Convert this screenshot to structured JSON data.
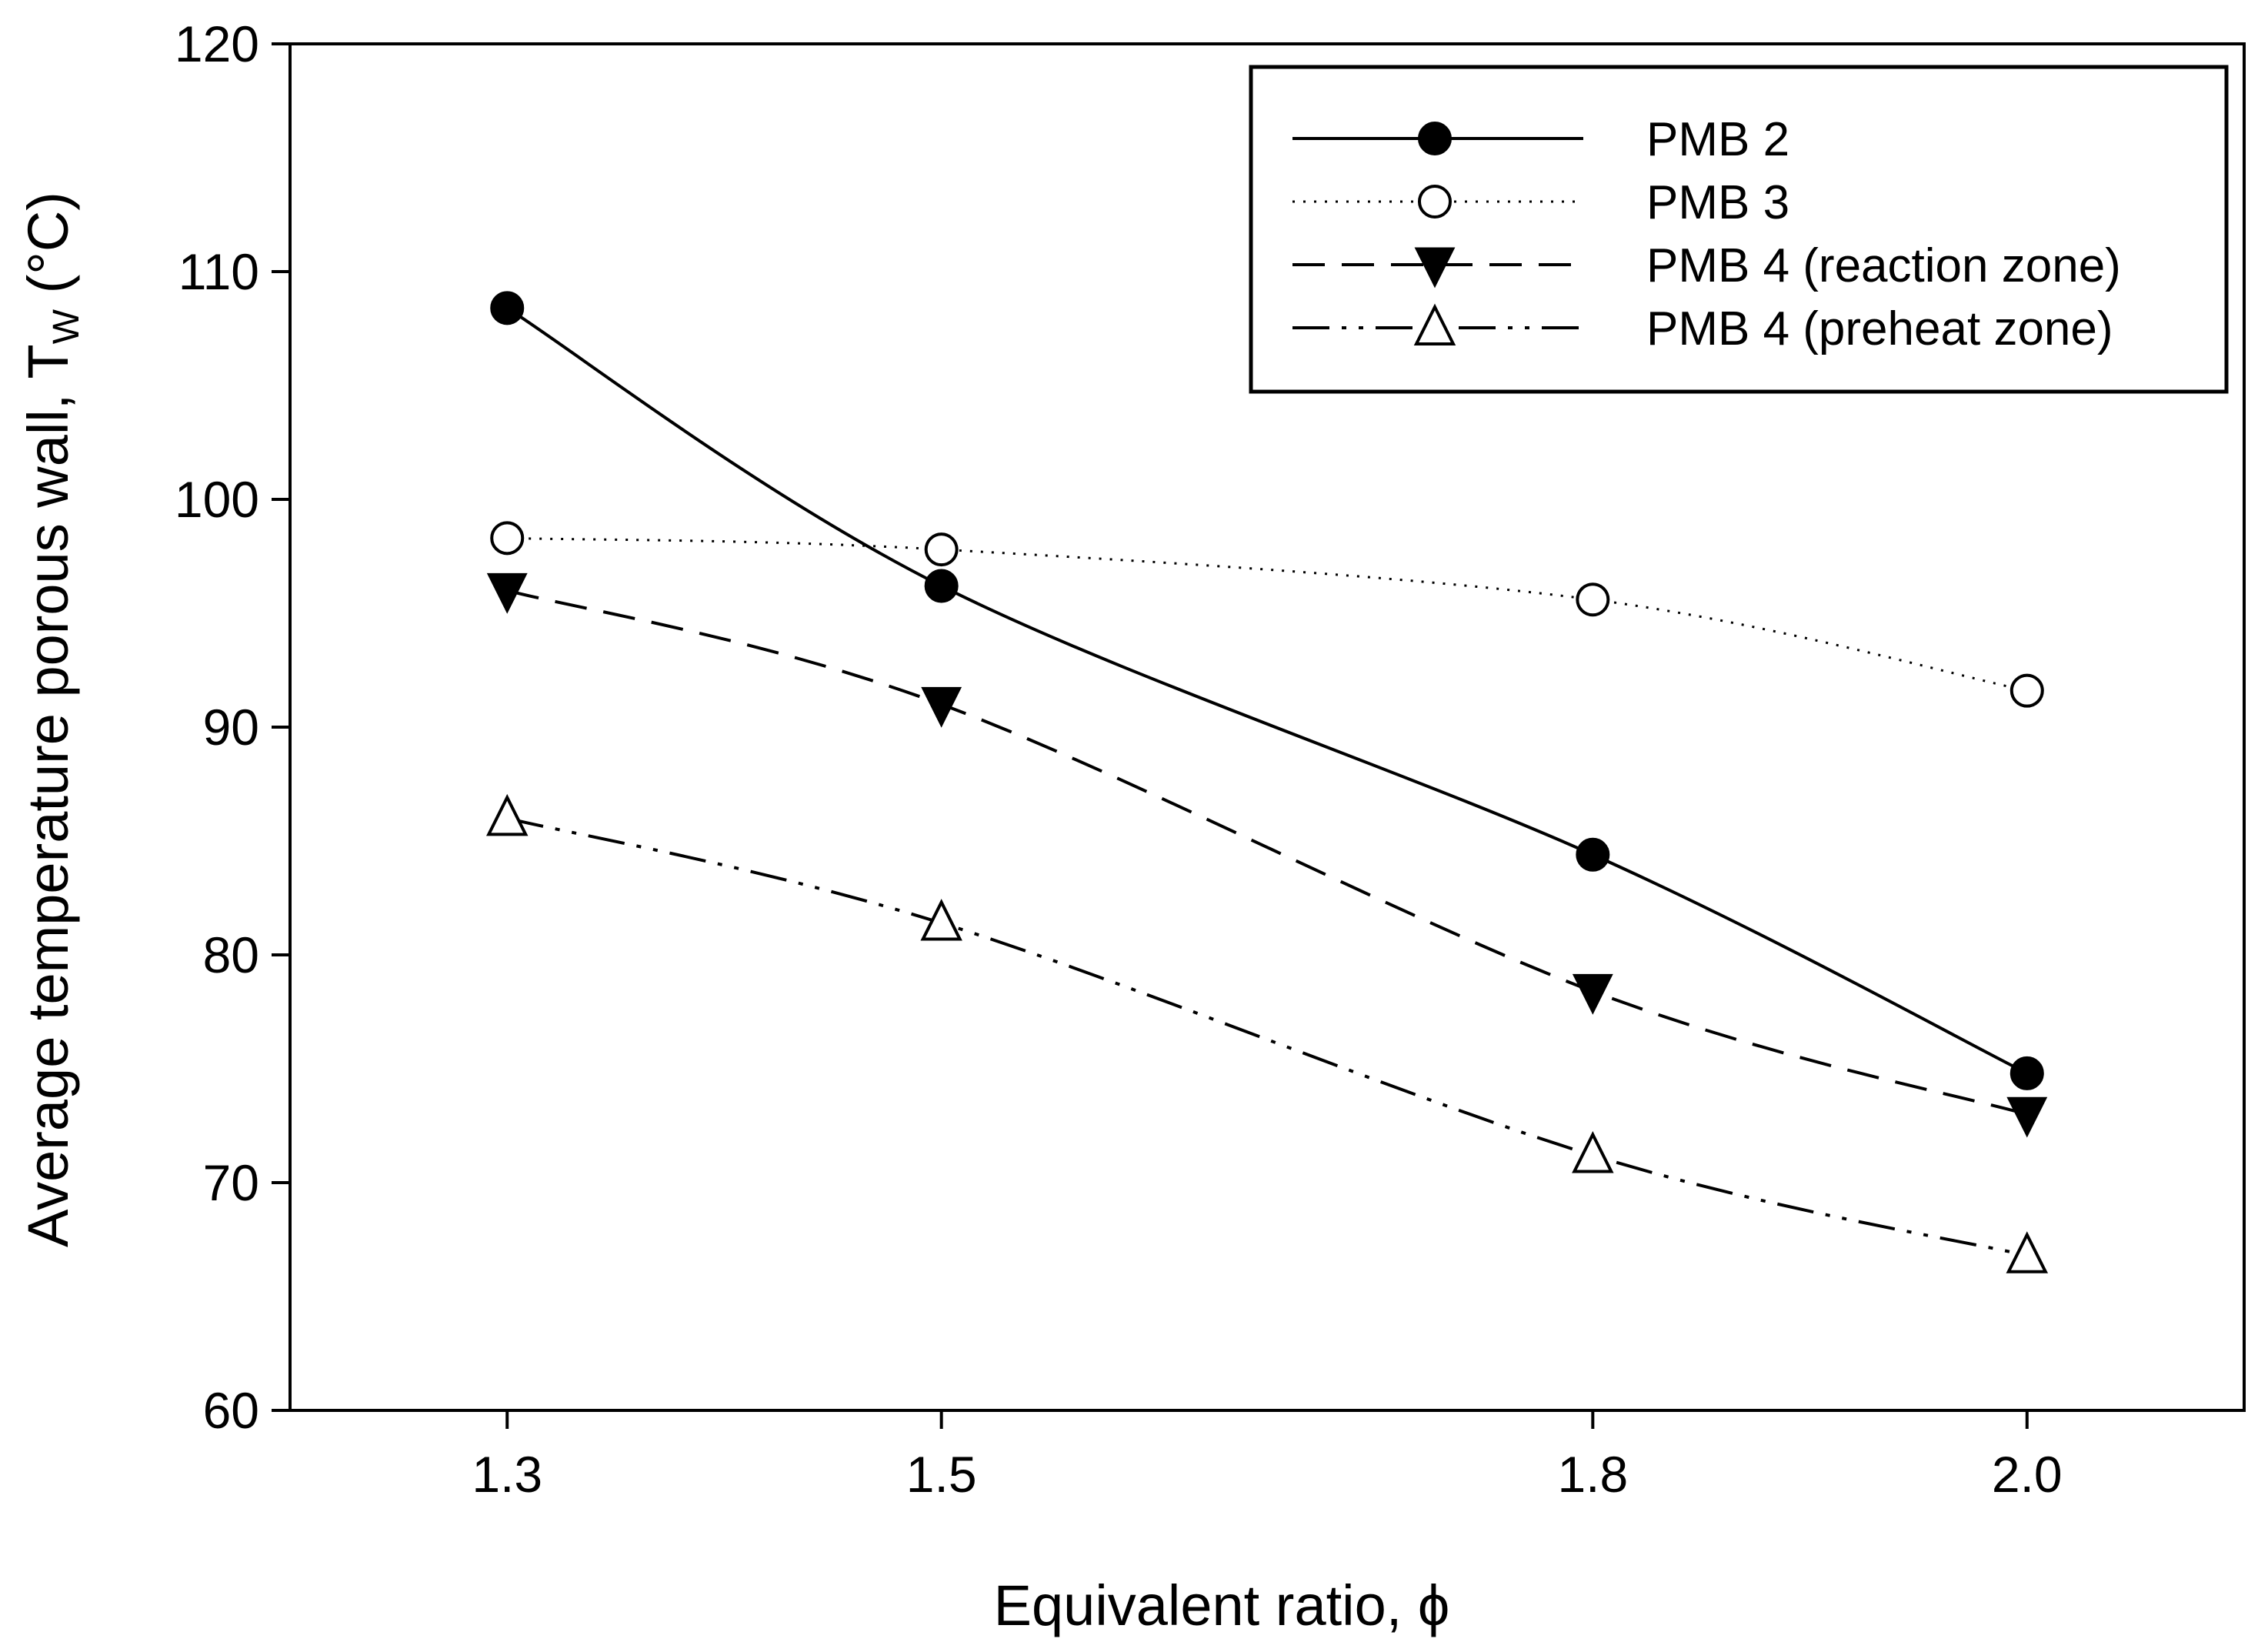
{
  "chart_data": {
    "type": "line",
    "title": "",
    "xlabel": "Equivalent ratio, ϕ",
    "ylabel": "Average temperature porous wall, T",
    "ylabel_subscript": "W",
    "ylabel_unit": " (°C)",
    "x": [
      1.3,
      1.5,
      1.8,
      2.0
    ],
    "x_tick_labels": [
      "1.3",
      "1.5",
      "1.8",
      "2.0"
    ],
    "xlim": [
      1.2,
      2.1
    ],
    "ylim": [
      60,
      120
    ],
    "y_ticks": [
      60,
      70,
      80,
      90,
      100,
      110,
      120
    ],
    "y_tick_labels": [
      "60",
      "70",
      "80",
      "90",
      "100",
      "110",
      "120"
    ],
    "grid": false,
    "legend_position": "top-right",
    "series": [
      {
        "name": "PMB 2",
        "values": [
          108.4,
          96.2,
          84.4,
          74.8
        ],
        "marker": "filled-circle",
        "line": "solid"
      },
      {
        "name": "PMB 3",
        "values": [
          98.3,
          97.8,
          95.6,
          91.6
        ],
        "marker": "open-circle",
        "line": "dotted"
      },
      {
        "name": "PMB 4 (reaction zone)",
        "values": [
          96.0,
          91.0,
          78.4,
          73.0
        ],
        "marker": "filled-triangle-down",
        "line": "dashed"
      },
      {
        "name": "PMB 4 (preheat zone)",
        "values": [
          86.0,
          81.4,
          71.2,
          66.8
        ],
        "marker": "open-triangle-up",
        "line": "dash-dot-dot"
      }
    ]
  }
}
